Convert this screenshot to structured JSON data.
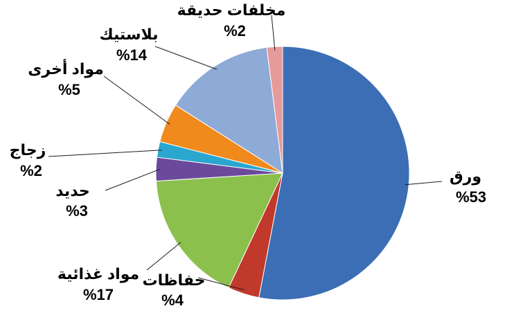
{
  "chart_data": {
    "type": "pie",
    "title": "",
    "legend": "none",
    "slices": [
      {
        "label": "ورق",
        "value": 53,
        "value_label": "%53",
        "color": "#3b6eb5"
      },
      {
        "label": "حفاظات",
        "value": 4,
        "value_label": "%4",
        "color": "#c0392b"
      },
      {
        "label": "مواد غذائية",
        "value": 17,
        "value_label": "%17",
        "color": "#8cc04d"
      },
      {
        "label": "حديد",
        "value": 3,
        "value_label": "%3",
        "color": "#6b4a9c"
      },
      {
        "label": "زجاج",
        "value": 2,
        "value_label": "%2",
        "color": "#2aa6cf"
      },
      {
        "label": "مواد أخرى",
        "value": 5,
        "value_label": "%5",
        "color": "#f08a1c"
      },
      {
        "label": "بلاستيك",
        "value": 14,
        "value_label": "%14",
        "color": "#8eaad6"
      },
      {
        "label": "مخلفات حديقة",
        "value": 2,
        "value_label": "%2",
        "color": "#e79a9a"
      }
    ]
  }
}
